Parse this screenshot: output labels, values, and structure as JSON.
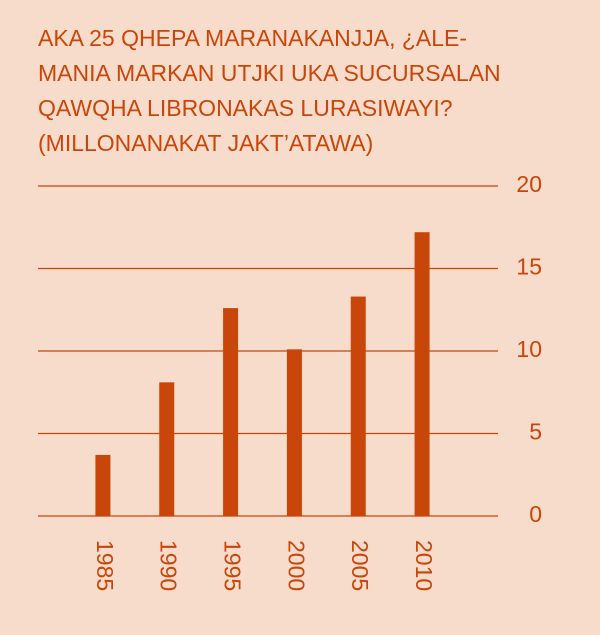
{
  "chart_data": {
    "type": "bar",
    "title": [
      "AKA 25 QHEPA MARANAKANJJA, ¿ALE-",
      "MANIA MARKAN UTJKI UKA SUCURSALAN",
      "QAWQHA LIBRONAKAS LURASIWAYI?",
      "(MILLONANAKAT JAKT’ATAWA)"
    ],
    "categories": [
      "1985",
      "1990",
      "1995",
      "2000",
      "2005",
      "2010"
    ],
    "values": [
      3.7,
      8.1,
      12.6,
      10.1,
      13.3,
      17.2
    ],
    "color": "#c8460a",
    "ylim": [
      0,
      20
    ],
    "yticks": [
      0,
      5,
      10,
      15,
      20
    ],
    "grid": true
  }
}
